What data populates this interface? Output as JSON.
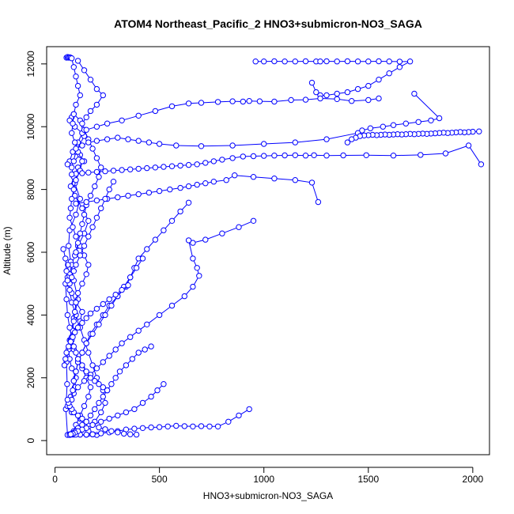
{
  "chart_data": {
    "type": "line",
    "title": "ATOM4 Northeast_Pacific_2 HNO3+submicron-NO3_SAGA",
    "xlabel": "HNO3+submicron-NO3_SAGA",
    "ylabel": "Altitude (m)",
    "xlim": [
      -40,
      2080
    ],
    "ylim": [
      -450,
      12550
    ],
    "x_ticks": [
      0,
      500,
      1000,
      1500,
      2000
    ],
    "x_tick_labels": [
      "0",
      "500",
      "1000",
      "1500",
      "2000"
    ],
    "y_ticks": [
      0,
      2000,
      4000,
      6000,
      8000,
      10000,
      12000
    ],
    "y_tick_labels": [
      "0",
      "2000",
      "4000",
      "6000",
      "8000",
      "10000",
      "12000"
    ],
    "grid": false,
    "series_color": "#0000ff",
    "series": [
      {
        "x": [
          60,
          52,
          58,
          55,
          70,
          90,
          110,
          90,
          75,
          65,
          70,
          100,
          120,
          95,
          80,
          100,
          140,
          120,
          90,
          80,
          70,
          95,
          130,
          110,
          85,
          70,
          60,
          90,
          120,
          140,
          110,
          90,
          75,
          95,
          130,
          160,
          140,
          110,
          95,
          80,
          70,
          60,
          80,
          100,
          130,
          120,
          90,
          75,
          65,
          70,
          80,
          100,
          95,
          75,
          60,
          80,
          120,
          140,
          120,
          100,
          85,
          70,
          90,
          120,
          150,
          180,
          200,
          180,
          160,
          140,
          160,
          190,
          220,
          240,
          230,
          200,
          180,
          160,
          140,
          120,
          100,
          80,
          70,
          60,
          62
        ],
        "y": [
          180,
          1000,
          1800,
          2500,
          3200,
          3900,
          4500,
          5100,
          5700,
          6200,
          6700,
          7200,
          7700,
          8200,
          8700,
          9200,
          9700,
          10200,
          10400,
          10300,
          10200,
          10000,
          9800,
          9500,
          9200,
          8900,
          8800,
          8900,
          9100,
          8900,
          8700,
          8400,
          8100,
          7800,
          7400,
          7000,
          6600,
          6200,
          5900,
          5600,
          5300,
          5000,
          4700,
          4400,
          4100,
          3800,
          3500,
          3200,
          2900,
          2600,
          2300,
          2000,
          1700,
          1400,
          1100,
          900,
          700,
          500,
          400,
          300,
          250,
          200,
          190,
          190,
          185,
          200,
          180,
          200,
          220,
          250,
          300,
          600,
          900,
          1200,
          1600,
          2000,
          2400,
          2800,
          3200,
          3600,
          4000,
          4400,
          4800,
          5200,
          5600
        ]
      },
      {
        "x": [
          55,
          60,
          65,
          70,
          75,
          80,
          90,
          100,
          110,
          120,
          100,
          90,
          85,
          80,
          95,
          110,
          130,
          120,
          100,
          90,
          80,
          75,
          70,
          85,
          100,
          120,
          140,
          160,
          150,
          130,
          110,
          100,
          95,
          90,
          85,
          80,
          90,
          110,
          130,
          150,
          170,
          160,
          140,
          120,
          100,
          90,
          85,
          80
        ],
        "y": [
          12200,
          12220,
          12200,
          12210,
          12200,
          12180,
          11900,
          11600,
          11300,
          11000,
          10700,
          10400,
          10100,
          9800,
          9500,
          9200,
          8900,
          8600,
          8300,
          8000,
          7700,
          7400,
          7100,
          6800,
          6500,
          6200,
          5900,
          5600,
          5300,
          5000,
          4700,
          4400,
          4100,
          3800,
          3500,
          3200,
          2900,
          2600,
          2300,
          2000,
          1700,
          1400,
          1100,
          800,
          500,
          300,
          200,
          190
        ]
      },
      {
        "x": [
          110,
          140,
          170,
          200,
          230,
          200,
          170,
          150,
          130,
          140,
          160,
          180,
          200,
          220,
          210,
          190,
          170,
          150,
          140,
          130,
          120,
          110,
          100
        ],
        "y": [
          12100,
          11800,
          11500,
          11200,
          11000,
          10700,
          10500,
          10300,
          10100,
          9900,
          9600,
          9300,
          9000,
          8700,
          8400,
          8100,
          7800,
          7500,
          7200,
          6900,
          6600,
          6300,
          6000
        ]
      },
      {
        "x": [
          960,
          1000,
          1050,
          1100,
          1150,
          1200,
          1250,
          1270,
          1300,
          1350,
          1400,
          1450,
          1500,
          1550,
          1600,
          1650,
          1700,
          1650,
          1600,
          1550,
          1500,
          1450,
          1400,
          1350,
          1300,
          1270,
          1250,
          1230
        ],
        "y": [
          12080,
          12080,
          12085,
          12080,
          12080,
          12085,
          12080,
          12080,
          12085,
          12080,
          12085,
          12080,
          12080,
          12085,
          12080,
          12075,
          12080,
          11900,
          11700,
          11500,
          11300,
          11200,
          11100,
          11050,
          11000,
          11000,
          11100,
          11400
        ]
      },
      {
        "x": [
          1550,
          1500,
          1420,
          1350,
          1270,
          1200,
          1130,
          1050,
          980,
          930,
          900,
          850,
          780,
          700,
          640,
          560,
          480,
          400,
          320,
          250,
          200,
          150
        ],
        "y": [
          10900,
          10850,
          10820,
          10880,
          10900,
          10860,
          10850,
          10800,
          10810,
          10820,
          10800,
          10810,
          10790,
          10760,
          10740,
          10650,
          10500,
          10350,
          10200,
          10100,
          10000,
          9900
        ]
      },
      {
        "x": [
          1720,
          1840,
          1800,
          1740,
          1680,
          1620,
          1570,
          1510,
          1470,
          1450,
          1300,
          1150,
          1000,
          850,
          700,
          580,
          500,
          450,
          400,
          350,
          300,
          250,
          200,
          160,
          130,
          100
        ],
        "y": [
          11050,
          10270,
          10200,
          10150,
          10100,
          10050,
          10000,
          9950,
          9880,
          9800,
          9600,
          9500,
          9450,
          9400,
          9380,
          9400,
          9450,
          9500,
          9550,
          9600,
          9650,
          9600,
          9550,
          9500,
          9400,
          9300
        ]
      },
      {
        "x": [
          2030,
          2000,
          1980,
          1960,
          1940,
          1920,
          1900,
          1880,
          1860,
          1840,
          1820,
          1800,
          1780,
          1760,
          1740,
          1720,
          1700,
          1680,
          1660,
          1640,
          1620,
          1600,
          1580,
          1560,
          1540,
          1520,
          1500,
          1480,
          1460,
          1440,
          1420,
          1400
        ],
        "y": [
          9850,
          9840,
          9830,
          9820,
          9830,
          9820,
          9810,
          9800,
          9810,
          9800,
          9790,
          9780,
          9770,
          9780,
          9770,
          9760,
          9770,
          9760,
          9750,
          9760,
          9750,
          9740,
          9750,
          9740,
          9730,
          9740,
          9730,
          9720,
          9700,
          9650,
          9600,
          9500
        ]
      },
      {
        "x": [
          2040,
          1980,
          1870,
          1750,
          1620,
          1490,
          1380,
          1300,
          1240,
          1200,
          1150,
          1100,
          1050,
          1000,
          950,
          900,
          850,
          800,
          760,
          720,
          680,
          640,
          600,
          560,
          520,
          480,
          440,
          400,
          360,
          320,
          280,
          240,
          200,
          160,
          130,
          100,
          80
        ],
        "y": [
          8800,
          9400,
          9150,
          9100,
          9080,
          9090,
          9085,
          9080,
          9090,
          9080,
          9090,
          9085,
          9080,
          9070,
          9060,
          9050,
          9000,
          8950,
          8900,
          8850,
          8800,
          8780,
          8760,
          8740,
          8720,
          8700,
          8680,
          8660,
          8640,
          8620,
          8600,
          8580,
          8560,
          8540,
          8520,
          8500,
          8480
        ]
      },
      {
        "x": [
          1260,
          1230,
          1150,
          1050,
          950,
          860,
          820,
          760,
          720,
          680,
          640,
          600,
          550,
          500,
          450,
          400,
          350,
          300,
          250,
          200,
          150,
          100
        ],
        "y": [
          7600,
          8220,
          8300,
          8350,
          8400,
          8450,
          8300,
          8250,
          8200,
          8150,
          8100,
          8050,
          8000,
          7950,
          7900,
          7850,
          7800,
          7750,
          7700,
          7650,
          7600,
          7550
        ]
      },
      {
        "x": [
          950,
          880,
          800,
          720,
          660,
          640,
          660,
          680,
          690,
          660,
          620,
          560,
          500,
          440,
          400,
          360,
          320,
          290,
          260,
          230,
          200,
          170,
          140,
          110,
          90
        ],
        "y": [
          7000,
          6800,
          6600,
          6400,
          6300,
          6380,
          5800,
          5500,
          5250,
          4900,
          4600,
          4300,
          4000,
          3700,
          3500,
          3300,
          3100,
          2900,
          2700,
          2500,
          2300,
          2100,
          1900,
          1700,
          1500
        ]
      },
      {
        "x": [
          930,
          880,
          830,
          780,
          740,
          700,
          660,
          620,
          580,
          540,
          500,
          460,
          420,
          380,
          340,
          300,
          260,
          220,
          180,
          150,
          120,
          100
        ],
        "y": [
          1000,
          800,
          600,
          450,
          450,
          460,
          450,
          460,
          470,
          450,
          430,
          420,
          400,
          380,
          350,
          300,
          260,
          230,
          200,
          190,
          190,
          190
        ]
      },
      {
        "x": [
          640,
          600,
          560,
          520,
          480,
          440,
          400,
          380,
          360,
          340,
          300,
          260,
          230,
          200,
          170,
          150,
          130,
          110,
          100,
          90
        ],
        "y": [
          7580,
          7300,
          7000,
          6700,
          6400,
          6100,
          5800,
          5500,
          5200,
          4900,
          4600,
          4300,
          4000,
          3700,
          3400,
          3100,
          2800,
          2500,
          2200,
          1900
        ]
      },
      {
        "x": [
          420,
          390,
          360,
          330,
          300,
          270,
          240,
          210,
          180,
          150,
          130,
          110,
          100,
          90,
          85,
          80
        ],
        "y": [
          5800,
          5500,
          5200,
          4900,
          4600,
          4300,
          4000,
          3700,
          3400,
          3100,
          2800,
          2500,
          2200,
          1900,
          1600,
          1300
        ]
      },
      {
        "x": [
          460,
          430,
          400,
          370,
          340,
          310,
          290,
          270,
          250,
          230,
          210,
          190,
          170,
          150,
          130,
          110,
          100,
          90,
          80,
          70
        ],
        "y": [
          3000,
          2900,
          2800,
          2600,
          2400,
          2200,
          2000,
          1800,
          1600,
          1400,
          1200,
          1000,
          800,
          600,
          500,
          400,
          300,
          250,
          200,
          180
        ]
      },
      {
        "x": [
          520,
          490,
          460,
          420,
          380,
          340,
          300,
          260,
          220,
          180,
          150,
          130,
          110,
          95,
          85,
          75
        ],
        "y": [
          1800,
          1600,
          1400,
          1200,
          1000,
          900,
          800,
          700,
          600,
          500,
          400,
          350,
          300,
          250,
          220,
          200
        ]
      },
      {
        "x": [
          390,
          360,
          330,
          300,
          270,
          240,
          210,
          180,
          150,
          130,
          110,
          90,
          80,
          70,
          65,
          60
        ],
        "y": [
          190,
          200,
          220,
          260,
          300,
          360,
          420,
          500,
          600,
          700,
          800,
          900,
          1000,
          1100,
          1200,
          1300
        ]
      },
      {
        "x": [
          250,
          230,
          210,
          190,
          170,
          150,
          130,
          110,
          100,
          90,
          80,
          70,
          60,
          55,
          50
        ],
        "y": [
          1600,
          1700,
          1800,
          1900,
          2000,
          2200,
          2400,
          2600,
          2800,
          3000,
          3300,
          3600,
          4000,
          4500,
          5000
        ]
      },
      {
        "x": [
          350,
          320,
          290,
          260,
          230,
          200,
          170,
          150,
          130,
          110,
          95,
          85,
          75,
          65,
          55,
          50,
          45
        ],
        "y": [
          4950,
          4800,
          4650,
          4500,
          4350,
          4200,
          4050,
          3900,
          3750,
          3600,
          3450,
          3300,
          3150,
          3000,
          2800,
          2600,
          2400
        ]
      },
      {
        "x": [
          280,
          260,
          240,
          220,
          200,
          180,
          160,
          140,
          120,
          100,
          90,
          80,
          70,
          60,
          55,
          50,
          40
        ],
        "y": [
          8250,
          8000,
          7700,
          7400,
          7100,
          6800,
          6500,
          6200,
          5900,
          5600,
          5400,
          5200,
          5000,
          5100,
          5400,
          5800,
          6100
        ]
      }
    ]
  }
}
